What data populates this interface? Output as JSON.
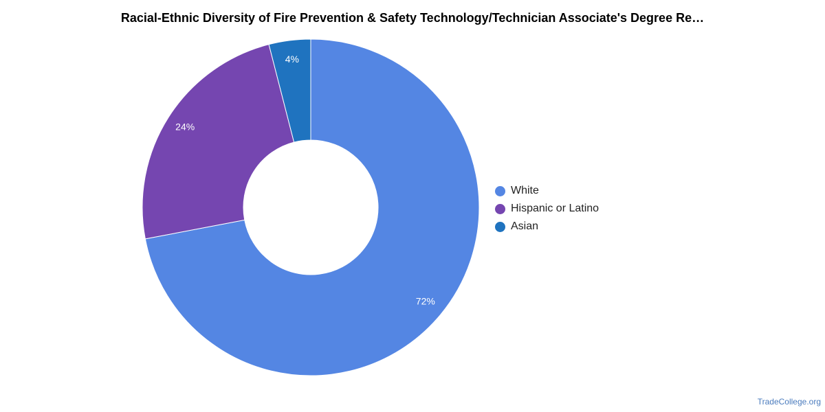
{
  "chart_data": {
    "type": "pie",
    "title": "Racial-Ethnic Diversity of Fire Prevention & Safety Technology/Technician Associate's Degree Re…",
    "donut": true,
    "categories": [
      "White",
      "Hispanic or Latino",
      "Asian"
    ],
    "values": [
      72,
      24,
      4
    ],
    "labels": [
      "72%",
      "24%",
      "4%"
    ],
    "colors": [
      "#5486e3",
      "#7546b0",
      "#1f73bf"
    ],
    "legend_position": "right"
  },
  "source": "TradeCollege.org"
}
